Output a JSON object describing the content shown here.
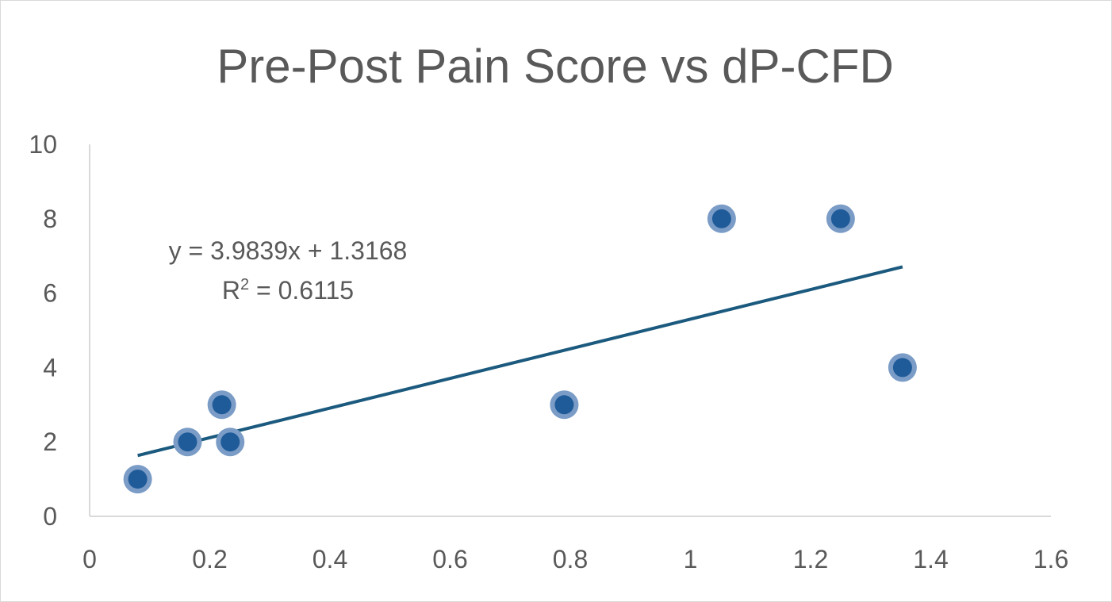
{
  "chart_data": {
    "type": "scatter",
    "title": "Pre-Post Pain Score vs dP-CFD",
    "xlabel": "",
    "ylabel": "",
    "xlim": [
      0,
      1.6
    ],
    "ylim": [
      0,
      10
    ],
    "x_ticks": [
      "0",
      "0.2",
      "0.4",
      "0.6",
      "0.8",
      "1",
      "1.2",
      "1.4",
      "1.6"
    ],
    "y_ticks": [
      "0",
      "2",
      "4",
      "6",
      "8",
      "10"
    ],
    "grid": false,
    "series": [
      {
        "points": [
          {
            "x": 0.08,
            "y": 1
          },
          {
            "x": 0.163,
            "y": 2
          },
          {
            "x": 0.22,
            "y": 3
          },
          {
            "x": 0.234,
            "y": 2
          },
          {
            "x": 0.79,
            "y": 3
          },
          {
            "x": 1.052,
            "y": 8
          },
          {
            "x": 1.25,
            "y": 8
          },
          {
            "x": 1.353,
            "y": 4
          }
        ],
        "marker_fill": "#1f5b99",
        "marker_halo": "#7a9cc6"
      }
    ],
    "trendline": {
      "type": "linear",
      "slope": 3.9839,
      "intercept": 1.3168,
      "x_range": [
        0.08,
        1.353
      ],
      "color": "#1b5a7e",
      "equation_label": "y = 3.9839x + 1.3168",
      "r2_prefix": "R",
      "r2_sup": "2",
      "r2_value": " = 0.6115"
    }
  }
}
